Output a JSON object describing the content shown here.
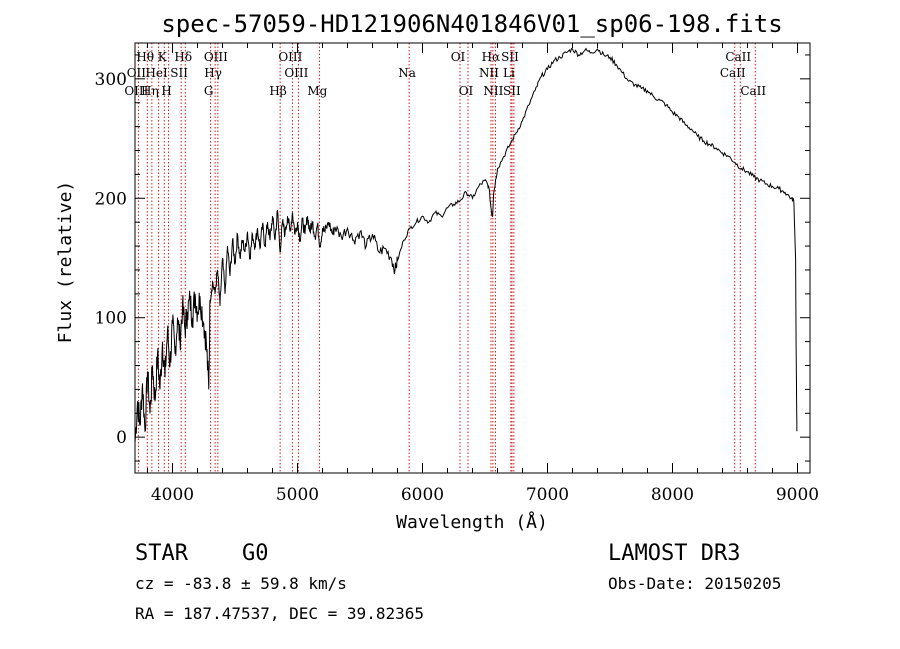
{
  "chart_data": {
    "type": "line",
    "title": "spec-57059-HD121906N401846V01_sp06-198.fits",
    "xlabel": "Wavelength (Å)",
    "ylabel": "Flux (relative)",
    "xlim": [
      3700,
      9100
    ],
    "ylim": [
      -30,
      330
    ],
    "xticks": [
      4000,
      5000,
      6000,
      7000,
      8000,
      9000
    ],
    "yticks": [
      0,
      100,
      200,
      300
    ],
    "series": [
      {
        "name": "flux",
        "points": [
          [
            3700,
            -5
          ],
          [
            3720,
            30
          ],
          [
            3740,
            10
          ],
          [
            3760,
            45
          ],
          [
            3780,
            5
          ],
          [
            3800,
            55
          ],
          [
            3820,
            20
          ],
          [
            3840,
            60
          ],
          [
            3860,
            30
          ],
          [
            3880,
            70
          ],
          [
            3900,
            40
          ],
          [
            3920,
            80
          ],
          [
            3940,
            50
          ],
          [
            3960,
            90
          ],
          [
            3980,
            60
          ],
          [
            4000,
            95
          ],
          [
            4020,
            70
          ],
          [
            4040,
            100
          ],
          [
            4060,
            80
          ],
          [
            4080,
            110
          ],
          [
            4100,
            90
          ],
          [
            4120,
            105
          ],
          [
            4140,
            115
          ],
          [
            4160,
            100
          ],
          [
            4180,
            120
          ],
          [
            4200,
            105
          ],
          [
            4220,
            118
          ],
          [
            4250,
            95
          ],
          [
            4270,
            80
          ],
          [
            4290,
            40
          ],
          [
            4300,
            115
          ],
          [
            4320,
            130
          ],
          [
            4340,
            120
          ],
          [
            4360,
            140
          ],
          [
            4380,
            110
          ],
          [
            4400,
            150
          ],
          [
            4420,
            120
          ],
          [
            4440,
            160
          ],
          [
            4460,
            135
          ],
          [
            4480,
            165
          ],
          [
            4500,
            145
          ],
          [
            4520,
            170
          ],
          [
            4540,
            150
          ],
          [
            4560,
            165
          ],
          [
            4580,
            155
          ],
          [
            4600,
            172
          ],
          [
            4620,
            150
          ],
          [
            4640,
            170
          ],
          [
            4660,
            160
          ],
          [
            4680,
            175
          ],
          [
            4700,
            158
          ],
          [
            4720,
            178
          ],
          [
            4740,
            160
          ],
          [
            4760,
            180
          ],
          [
            4780,
            165
          ],
          [
            4800,
            185
          ],
          [
            4820,
            165
          ],
          [
            4840,
            190
          ],
          [
            4860,
            155
          ],
          [
            4880,
            180
          ],
          [
            4900,
            170
          ],
          [
            4920,
            185
          ],
          [
            4940,
            172
          ],
          [
            4960,
            188
          ],
          [
            4980,
            170
          ],
          [
            5000,
            180
          ],
          [
            5020,
            165
          ],
          [
            5040,
            182
          ],
          [
            5060,
            170
          ],
          [
            5080,
            185
          ],
          [
            5100,
            172
          ],
          [
            5120,
            180
          ],
          [
            5140,
            168
          ],
          [
            5160,
            178
          ],
          [
            5180,
            160
          ],
          [
            5200,
            175
          ],
          [
            5220,
            172
          ],
          [
            5250,
            180
          ],
          [
            5280,
            170
          ],
          [
            5300,
            176
          ],
          [
            5350,
            168
          ],
          [
            5400,
            175
          ],
          [
            5450,
            165
          ],
          [
            5500,
            172
          ],
          [
            5550,
            160
          ],
          [
            5600,
            170
          ],
          [
            5650,
            155
          ],
          [
            5700,
            158
          ],
          [
            5750,
            150
          ],
          [
            5780,
            140
          ],
          [
            5800,
            148
          ],
          [
            5850,
            165
          ],
          [
            5900,
            175
          ],
          [
            5950,
            180
          ],
          [
            6000,
            185
          ],
          [
            6050,
            180
          ],
          [
            6100,
            188
          ],
          [
            6150,
            185
          ],
          [
            6200,
            192
          ],
          [
            6250,
            195
          ],
          [
            6300,
            198
          ],
          [
            6350,
            205
          ],
          [
            6400,
            200
          ],
          [
            6450,
            210
          ],
          [
            6500,
            215
          ],
          [
            6530,
            210
          ],
          [
            6550,
            190
          ],
          [
            6560,
            185
          ],
          [
            6570,
            205
          ],
          [
            6600,
            225
          ],
          [
            6650,
            235
          ],
          [
            6700,
            245
          ],
          [
            6750,
            255
          ],
          [
            6800,
            265
          ],
          [
            6850,
            278
          ],
          [
            6900,
            290
          ],
          [
            6950,
            302
          ],
          [
            7000,
            308
          ],
          [
            7050,
            315
          ],
          [
            7100,
            318
          ],
          [
            7150,
            322
          ],
          [
            7200,
            325
          ],
          [
            7250,
            320
          ],
          [
            7300,
            324
          ],
          [
            7350,
            322
          ],
          [
            7400,
            325
          ],
          [
            7450,
            320
          ],
          [
            7500,
            318
          ],
          [
            7550,
            312
          ],
          [
            7600,
            305
          ],
          [
            7650,
            298
          ],
          [
            7700,
            295
          ],
          [
            7750,
            292
          ],
          [
            7800,
            290
          ],
          [
            7850,
            285
          ],
          [
            7900,
            282
          ],
          [
            7950,
            278
          ],
          [
            8000,
            272
          ],
          [
            8050,
            268
          ],
          [
            8100,
            262
          ],
          [
            8150,
            258
          ],
          [
            8200,
            252
          ],
          [
            8250,
            248
          ],
          [
            8300,
            245
          ],
          [
            8350,
            242
          ],
          [
            8400,
            238
          ],
          [
            8450,
            235
          ],
          [
            8500,
            230
          ],
          [
            8550,
            225
          ],
          [
            8600,
            222
          ],
          [
            8650,
            218
          ],
          [
            8700,
            215
          ],
          [
            8750,
            212
          ],
          [
            8800,
            210
          ],
          [
            8850,
            208
          ],
          [
            8900,
            205
          ],
          [
            8950,
            200
          ],
          [
            8970,
            198
          ],
          [
            8985,
            150
          ],
          [
            8990,
            60
          ],
          [
            8995,
            5
          ]
        ]
      }
    ],
    "annotations": [
      {
        "label": "Hθ",
        "x": 3798,
        "row": 1
      },
      {
        "label": "OII",
        "x": 3727,
        "row": 2
      },
      {
        "label": "OIII",
        "x": 3727,
        "row": 3
      },
      {
        "label": "K",
        "x": 3934,
        "row": 1
      },
      {
        "label": "HeI",
        "x": 3889,
        "row": 2
      },
      {
        "label": "Hη",
        "x": 3835,
        "row": 3
      },
      {
        "label": "Hδ",
        "x": 4102,
        "row": 1
      },
      {
        "label": "SII",
        "x": 4069,
        "row": 2
      },
      {
        "label": "H",
        "x": 3969,
        "row": 3
      },
      {
        "label": "OIII",
        "x": 4363,
        "row": 1
      },
      {
        "label": "Hγ",
        "x": 4341,
        "row": 2
      },
      {
        "label": "G",
        "x": 4305,
        "row": 3
      },
      {
        "label": "OIII",
        "x": 4959,
        "row": 1
      },
      {
        "label": "OIII",
        "x": 5007,
        "row": 2
      },
      {
        "label": "Hβ",
        "x": 4861,
        "row": 3
      },
      {
        "label": "Mg",
        "x": 5175,
        "row": 3
      },
      {
        "label": "Na",
        "x": 5893,
        "row": 2
      },
      {
        "label": "OI",
        "x": 6300,
        "row": 1
      },
      {
        "label": "OI",
        "x": 6364,
        "row": 3
      },
      {
        "label": "Hα",
        "x": 6563,
        "row": 1
      },
      {
        "label": "SII",
        "x": 6716,
        "row": 1
      },
      {
        "label": "NII",
        "x": 6548,
        "row": 2
      },
      {
        "label": "Li",
        "x": 6707,
        "row": 2
      },
      {
        "label": "NII",
        "x": 6583,
        "row": 3
      },
      {
        "label": "SII",
        "x": 6731,
        "row": 3
      },
      {
        "label": "CaII",
        "x": 8542,
        "row": 1
      },
      {
        "label": "CaII",
        "x": 8498,
        "row": 2
      },
      {
        "label": "CaII",
        "x": 8662,
        "row": 3
      }
    ],
    "line_markers": [
      3727,
      3798,
      3835,
      3889,
      3934,
      3969,
      4069,
      4102,
      4305,
      4341,
      4363,
      4861,
      4959,
      5007,
      5175,
      5893,
      6300,
      6364,
      6548,
      6563,
      6583,
      6707,
      6716,
      6731,
      8498,
      8542,
      8662
    ]
  },
  "info": {
    "object_class": "STAR",
    "subclass": "G0",
    "survey": "LAMOST DR3",
    "cz": "cz = -83.8 ± 59.8 km/s",
    "obs_date": "Obs-Date: 20150205",
    "coords": "RA = 187.47537, DEC =  39.82365"
  },
  "colors": {
    "line": "#000000",
    "marker": "#cc0000",
    "axes": "#000000"
  }
}
